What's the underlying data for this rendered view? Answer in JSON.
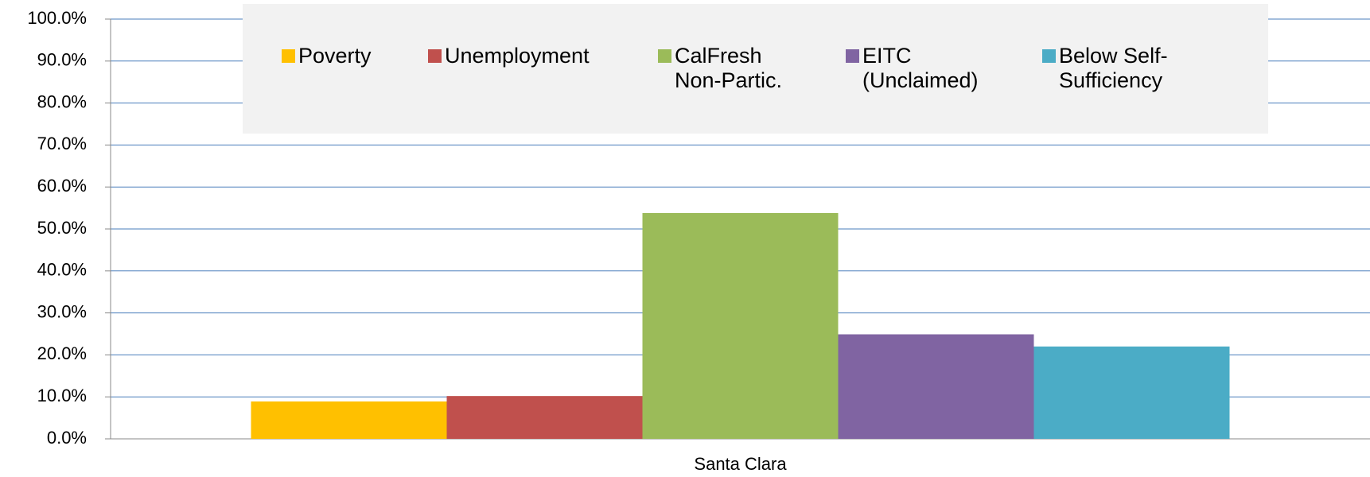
{
  "chart_data": {
    "type": "bar",
    "categories": [
      "Santa Clara"
    ],
    "series": [
      {
        "name": "Poverty",
        "color": "#FFC000",
        "values": [
          8.9
        ]
      },
      {
        "name": "Unemployment",
        "color": "#C0504D",
        "values": [
          10.2
        ]
      },
      {
        "name": "CalFresh Non-Partic.",
        "color": "#9BBB59",
        "values": [
          53.8
        ]
      },
      {
        "name": "EITC (Unclaimed)",
        "color": "#8064A2",
        "values": [
          24.9
        ]
      },
      {
        "name": "Below Self-Sufficiency",
        "color": "#4BACC6",
        "values": [
          22.0
        ]
      }
    ],
    "ylim": [
      0,
      100
    ],
    "yticks": [
      {
        "value": 0,
        "label": "0.0%"
      },
      {
        "value": 10,
        "label": "10.0%"
      },
      {
        "value": 20,
        "label": "20.0%"
      },
      {
        "value": 30,
        "label": "30.0%"
      },
      {
        "value": 40,
        "label": "40.0%"
      },
      {
        "value": 50,
        "label": "50.0%"
      },
      {
        "value": 60,
        "label": "60.0%"
      },
      {
        "value": 70,
        "label": "70.0%"
      },
      {
        "value": 80,
        "label": "80.0%"
      },
      {
        "value": 90,
        "label": "90.0%"
      },
      {
        "value": 100,
        "label": "100.0%"
      }
    ],
    "grid": true,
    "legend": "top"
  }
}
